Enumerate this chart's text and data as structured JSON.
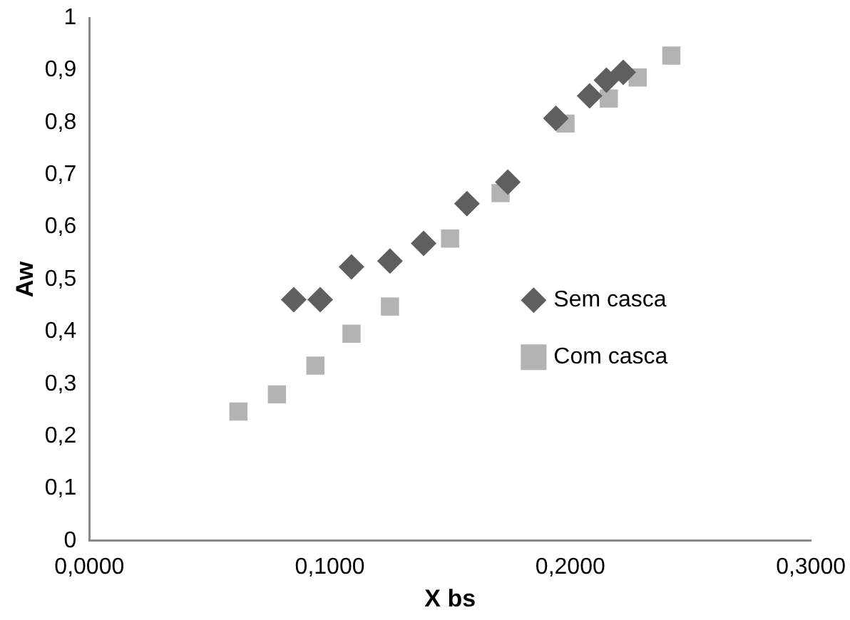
{
  "chart_data": {
    "type": "scatter",
    "xlabel": "X bs",
    "ylabel": "Aw",
    "xlim": [
      0,
      0.3
    ],
    "xticks": [
      {
        "value": 0,
        "label": "0,0000"
      },
      {
        "value": 0.1,
        "label": "0,1000"
      },
      {
        "value": 0.2,
        "label": "0,2000"
      },
      {
        "value": 0.3,
        "label": "0,3000"
      }
    ],
    "ylim": [
      0,
      1
    ],
    "yticks": [
      0,
      {
        "value": 0.1,
        "label": "0,1"
      },
      {
        "value": 0.2,
        "label": "0,2"
      },
      {
        "value": 0.3,
        "label": "0,3"
      },
      {
        "value": 0.4,
        "label": "0,4"
      },
      {
        "value": 0.5,
        "label": "0,5"
      },
      {
        "value": 0.6,
        "label": "0,6"
      },
      {
        "value": 0.7,
        "label": "0,7"
      },
      {
        "value": 0.8,
        "label": "0,8"
      },
      {
        "value": 0.9,
        "label": "0,9"
      },
      1
    ],
    "grid": false,
    "legend": "right",
    "series": [
      {
        "name": "Sem casca",
        "color": "#5f5f5f",
        "marker": "diamond",
        "x": [
          0.085,
          0.096,
          0.109,
          0.125,
          0.139,
          0.157,
          0.174,
          0.194,
          0.208,
          0.215,
          0.222
        ],
        "values": [
          0.461,
          0.461,
          0.524,
          0.535,
          0.569,
          0.645,
          0.686,
          0.808,
          0.851,
          0.881,
          0.896
        ]
      },
      {
        "name": "Com casca",
        "color": "#b3b3b3",
        "marker": "square",
        "x": [
          0.062,
          0.078,
          0.094,
          0.109,
          0.125,
          0.15,
          0.171,
          0.198,
          0.216,
          0.228,
          0.242
        ],
        "values": [
          0.247,
          0.28,
          0.335,
          0.396,
          0.448,
          0.578,
          0.665,
          0.798,
          0.846,
          0.886,
          0.928
        ]
      }
    ]
  }
}
